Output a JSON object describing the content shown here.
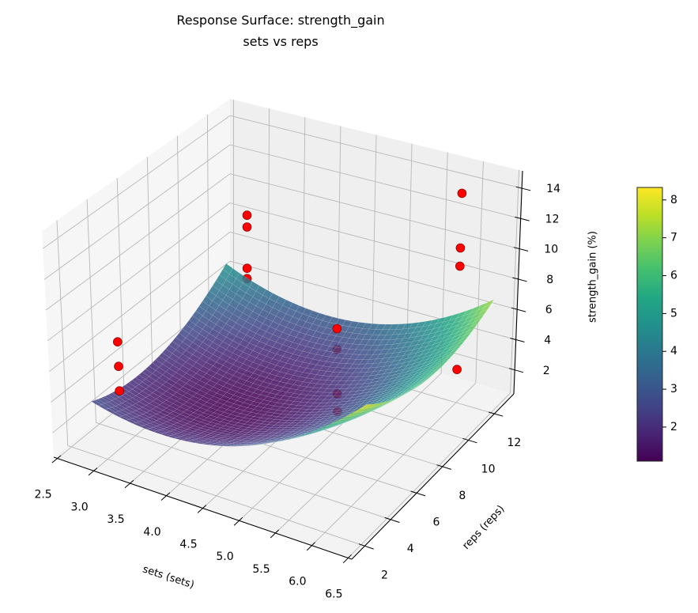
{
  "chart_data": {
    "type": "surface",
    "title": "Response Surface: strength_gain",
    "subtitle": "sets vs reps",
    "xlabel": "sets (sets)",
    "ylabel": "reps (reps)",
    "zlabel": "strength_gain (%)",
    "view": {
      "elev": 30,
      "azim": -60
    },
    "grid": true,
    "xlim": [
      2.45,
      6.55
    ],
    "ylim": [
      1.0,
      13.5
    ],
    "zlim": [
      0.42,
      15.15
    ],
    "xticks": [
      2.5,
      3.0,
      3.5,
      4.0,
      4.5,
      5.0,
      5.5,
      6.0,
      6.5
    ],
    "xtick_labels": [
      "2.5",
      "3.0",
      "3.5",
      "4.0",
      "4.5",
      "5.0",
      "5.5",
      "6.0",
      "6.5"
    ],
    "yticks": [
      2,
      4,
      6,
      8,
      10,
      12
    ],
    "ytick_labels": [
      "2",
      "4",
      "6",
      "8",
      "10",
      "12"
    ],
    "zticks": [
      2,
      4,
      6,
      8,
      10,
      12,
      14
    ],
    "ztick_labels": [
      "2",
      "4",
      "6",
      "8",
      "10",
      "12",
      "14"
    ],
    "surface": {
      "colormap": "viridis",
      "alpha": 0.85,
      "x": [
        2.6,
        3.55,
        4.5,
        5.45,
        6.4
      ],
      "y": [
        3.0,
        5.375,
        7.75,
        10.125,
        12.5
      ],
      "z": [
        [
          2.8,
          2.13,
          2.8,
          4.83,
          8.2
        ],
        [
          2.1,
          1.24,
          1.74,
          3.58,
          6.78
        ],
        [
          2.2,
          1.16,
          1.48,
          3.14,
          6.15
        ],
        [
          3.1,
          1.88,
          2.01,
          3.49,
          6.33
        ],
        [
          4.8,
          3.4,
          3.35,
          4.65,
          7.3
        ]
      ]
    },
    "scatter": [
      {
        "layer": "below_surface",
        "color": "#ff0000",
        "points": [
          [
            3.0,
            12.0,
            5.4
          ],
          [
            3.0,
            12.0,
            4.7
          ],
          [
            6.0,
            3.0,
            11.1
          ],
          [
            6.0,
            3.0,
            8.3
          ],
          [
            6.0,
            3.0,
            7.2
          ]
        ]
      },
      {
        "layer": "above_surface",
        "color": "#ff0000",
        "points": [
          [
            3.0,
            3.0,
            7.3
          ],
          [
            3.0,
            3.0,
            5.7
          ],
          [
            3.0,
            3.0,
            4.1
          ],
          [
            3.0,
            12.0,
            9.0
          ],
          [
            3.0,
            12.0,
            8.2
          ],
          [
            6.0,
            3.0,
            12.4
          ],
          [
            6.0,
            12.0,
            14.2
          ],
          [
            6.0,
            12.0,
            10.6
          ],
          [
            6.0,
            12.0,
            9.4
          ],
          [
            6.0,
            12.0,
            2.6
          ]
        ]
      }
    ],
    "colorbar": {
      "range": [
        1.1,
        8.33
      ],
      "ticks": [
        2,
        3,
        4,
        5,
        6,
        7,
        8
      ],
      "tick_labels": [
        "2",
        "3",
        "4",
        "5",
        "6",
        "7",
        "8"
      ]
    },
    "colors": {
      "pane_left": "#f6f6f6",
      "pane_back": "#efefef",
      "pane_floor": "#f3f3f3",
      "viridis": [
        "#440154",
        "#482475",
        "#414487",
        "#355f8d",
        "#2a788e",
        "#21918c",
        "#22a884",
        "#44bf70",
        "#7ad151",
        "#bddf26",
        "#fde725"
      ]
    }
  }
}
